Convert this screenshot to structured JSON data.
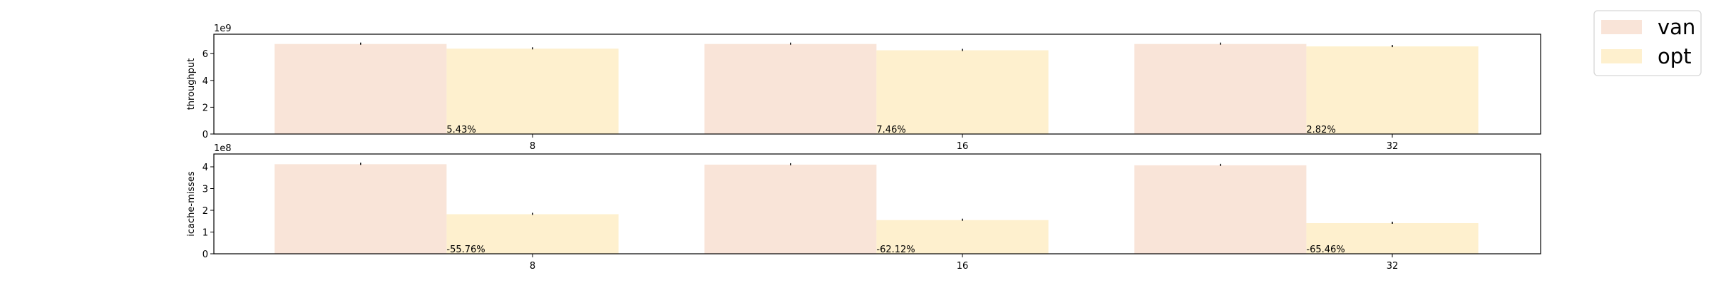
{
  "chart_data": [
    {
      "type": "bar",
      "ylabel": "throughput",
      "offset_label": "1e9",
      "scale": 1000000000.0,
      "categories": [
        "8",
        "16",
        "32"
      ],
      "ylim": [
        0,
        7.45
      ],
      "yticks": [
        0,
        2,
        4,
        6
      ],
      "series": [
        {
          "name": "van",
          "values": [
            6.72,
            6.72,
            6.72
          ]
        },
        {
          "name": "opt",
          "values": [
            6.37,
            6.25,
            6.54
          ]
        }
      ],
      "annotations": [
        "5.43%",
        "7.46%",
        "2.82%"
      ],
      "grid": false
    },
    {
      "type": "bar",
      "ylabel": "icache-misses",
      "offset_label": "1e8",
      "scale": 100000000.0,
      "categories": [
        "8",
        "16",
        "32"
      ],
      "ylim": [
        0,
        4.59
      ],
      "yticks": [
        0,
        1,
        2,
        3,
        4
      ],
      "series": [
        {
          "name": "van",
          "values": [
            4.12,
            4.1,
            4.07
          ]
        },
        {
          "name": "opt",
          "values": [
            1.82,
            1.55,
            1.41
          ]
        }
      ],
      "annotations": [
        "-55.76%",
        "-62.12%",
        "-65.46%"
      ],
      "grid": false
    }
  ],
  "legend": {
    "placement": "top-right",
    "items": [
      {
        "label": "van",
        "color": "#f9e4d8"
      },
      {
        "label": "opt",
        "color": "#fef0ce"
      }
    ]
  }
}
